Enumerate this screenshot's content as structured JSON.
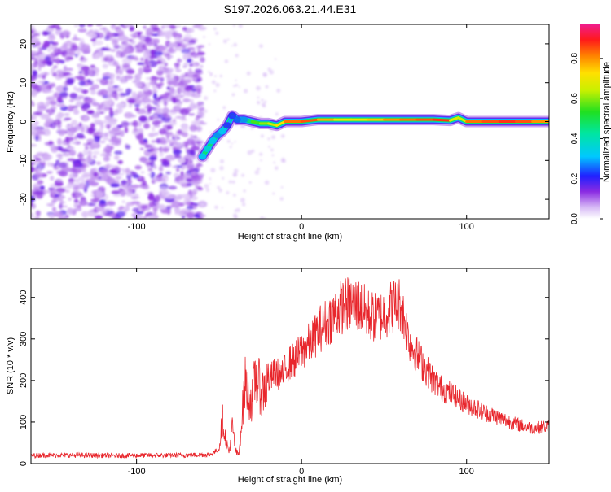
{
  "title": "S197.2026.063.21.44.E31",
  "colorbar": {
    "label": "Normalized spectral amplitude",
    "ticks": [
      "0.0",
      "0.2",
      "0.4",
      "0.6",
      "0.8"
    ],
    "tick_values": [
      0.0,
      0.2,
      0.4,
      0.6,
      0.8
    ],
    "range": [
      0,
      0.97
    ]
  },
  "chart_data": [
    {
      "type": "heatmap",
      "title": "",
      "xlabel": "Height of straight line (km)",
      "ylabel": "Frequency (Hz)",
      "xlim": [
        -164,
        150
      ],
      "ylim": [
        -25,
        25
      ],
      "x_ticks": [
        -100,
        0,
        100
      ],
      "x_tick_labels": [
        "-100",
        "0",
        "100"
      ],
      "y_ticks": [
        -20,
        -10,
        0,
        10,
        20
      ],
      "y_tick_labels": [
        "-20",
        "-10",
        "0",
        "10",
        "20"
      ],
      "noise_region_x": [
        -164,
        -60
      ],
      "signal_ridge": [
        {
          "x": -60,
          "y": -9,
          "amp": 0.45
        },
        {
          "x": -57,
          "y": -7,
          "amp": 0.5
        },
        {
          "x": -54,
          "y": -5,
          "amp": 0.45
        },
        {
          "x": -51,
          "y": -3.5,
          "amp": 0.4
        },
        {
          "x": -48,
          "y": -2.5,
          "amp": 0.45
        },
        {
          "x": -45,
          "y": -1,
          "amp": 0.3
        },
        {
          "x": -42,
          "y": 1.5,
          "amp": 0.3
        },
        {
          "x": -39,
          "y": 0.5,
          "amp": 0.35
        },
        {
          "x": -35,
          "y": 0.5,
          "amp": 0.4
        },
        {
          "x": -30,
          "y": 0,
          "amp": 0.55
        },
        {
          "x": -25,
          "y": -0.5,
          "amp": 0.6
        },
        {
          "x": -20,
          "y": -0.5,
          "amp": 0.65
        },
        {
          "x": -15,
          "y": -1,
          "amp": 0.7
        },
        {
          "x": -10,
          "y": 0,
          "amp": 0.8
        },
        {
          "x": 0,
          "y": 0,
          "amp": 0.9
        },
        {
          "x": 10,
          "y": 0.5,
          "amp": 0.85
        },
        {
          "x": 20,
          "y": 0.5,
          "amp": 0.75
        },
        {
          "x": 30,
          "y": 0.5,
          "amp": 0.7
        },
        {
          "x": 40,
          "y": 0.5,
          "amp": 0.75
        },
        {
          "x": 50,
          "y": 0.5,
          "amp": 0.8
        },
        {
          "x": 60,
          "y": 0.5,
          "amp": 0.85
        },
        {
          "x": 70,
          "y": 0.5,
          "amp": 0.85
        },
        {
          "x": 80,
          "y": 0.5,
          "amp": 0.9
        },
        {
          "x": 90,
          "y": 0.3,
          "amp": 0.9
        },
        {
          "x": 95,
          "y": 1,
          "amp": 0.5
        },
        {
          "x": 100,
          "y": 0,
          "amp": 0.85
        },
        {
          "x": 110,
          "y": 0,
          "amp": 0.85
        },
        {
          "x": 120,
          "y": 0,
          "amp": 0.9
        },
        {
          "x": 130,
          "y": 0,
          "amp": 0.9
        },
        {
          "x": 140,
          "y": 0,
          "amp": 0.85
        },
        {
          "x": 150,
          "y": 0,
          "amp": 0.8
        }
      ]
    },
    {
      "type": "line",
      "title": "",
      "xlabel": "Height of straight line (km)",
      "ylabel": "SNR (10 * v/v)",
      "xlim": [
        -164,
        150
      ],
      "ylim": [
        0,
        470
      ],
      "x_ticks": [
        -100,
        0,
        100
      ],
      "x_tick_labels": [
        "-100",
        "0",
        "100"
      ],
      "y_ticks": [
        0,
        100,
        200,
        300,
        400
      ],
      "y_tick_labels": [
        "0",
        "100",
        "200",
        "300",
        "400"
      ],
      "series": [
        {
          "name": "SNR",
          "color": "#e8262c",
          "x": [
            -164,
            -150,
            -130,
            -110,
            -90,
            -70,
            -55,
            -50,
            -48,
            -46,
            -44,
            -42,
            -40,
            -38,
            -36,
            -34,
            -32,
            -30,
            -28,
            -26,
            -24,
            -20,
            -16,
            -12,
            -8,
            -4,
            0,
            5,
            10,
            15,
            20,
            25,
            30,
            35,
            40,
            45,
            50,
            55,
            60,
            62,
            65,
            70,
            75,
            80,
            85,
            90,
            95,
            100,
            110,
            120,
            130,
            140,
            150
          ],
          "y": [
            20,
            20,
            20,
            19,
            20,
            20,
            22,
            35,
            110,
            60,
            25,
            90,
            30,
            20,
            120,
            200,
            160,
            150,
            210,
            190,
            170,
            200,
            220,
            210,
            240,
            250,
            270,
            290,
            320,
            340,
            360,
            380,
            385,
            380,
            360,
            350,
            360,
            380,
            385,
            350,
            300,
            260,
            230,
            200,
            180,
            170,
            155,
            145,
            125,
            110,
            95,
            85,
            90
          ]
        }
      ]
    }
  ]
}
